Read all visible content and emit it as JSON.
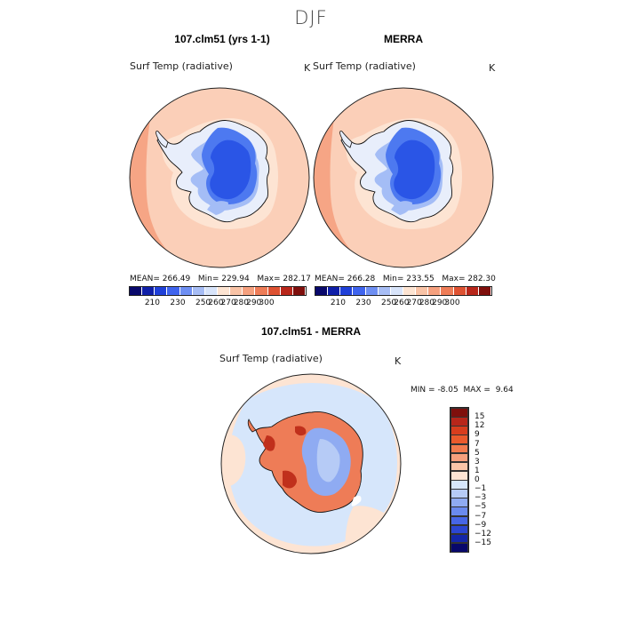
{
  "season": "DJF",
  "panels": [
    {
      "title": "107.clm51 (yrs 1-1)",
      "variable": "Surf Temp (radiative)",
      "units": "K",
      "stats": {
        "mean": "266.49",
        "min": "229.94",
        "max": "282.17"
      }
    },
    {
      "title": "MERRA",
      "variable": "Surf Temp (radiative)",
      "units": "K",
      "stats": {
        "mean": "266.28",
        "min": "233.55",
        "max": "282.30"
      }
    },
    {
      "title": "107.clm51 - MERRA",
      "variable": "Surf Temp (radiative)",
      "units": "K",
      "stats": {
        "min": "-8.05",
        "max": "9.64"
      }
    }
  ],
  "labels": {
    "mean": "MEAN=",
    "min": "Min=",
    "max": "Max=",
    "diff_min": "MIN =",
    "diff_max": "MAX ="
  },
  "abs_colorbar": {
    "ticks": [
      "210",
      "230",
      "250",
      "260",
      "270",
      "280",
      "290",
      "300"
    ],
    "colors": [
      "#08086b",
      "#0f1fa8",
      "#1f40d8",
      "#3f64ee",
      "#6e8ff3",
      "#a7bdf5",
      "#d8e4fa",
      "#fde4d2",
      "#f9c3a6",
      "#f5a07e",
      "#ee7c57",
      "#de5232",
      "#b8261a",
      "#7f0f0c"
    ]
  },
  "diff_colorbar": {
    "ticks": [
      "15",
      "12",
      "9",
      "7",
      "5",
      "3",
      "1",
      "0",
      "−1",
      "−3",
      "−5",
      "−7",
      "−9",
      "−12",
      "−15"
    ],
    "colors": [
      "#7f0f0c",
      "#b8261a",
      "#d83d1d",
      "#ea5a2c",
      "#f27b4e",
      "#f6a07d",
      "#f9c5a8",
      "#fde4d3",
      "#d6e6fb",
      "#b6cbf6",
      "#8fabf2",
      "#6a8aee",
      "#4766e6",
      "#2c46d2",
      "#1426a8",
      "#08086b"
    ]
  },
  "map_colors": {
    "ocean_abs": "#fbcfb8",
    "ocean_warm": "#f6a585",
    "ocean_cool": "#fde4d3",
    "ice_dark": "#2a55e6",
    "ice_mid": "#4d79f0",
    "ice_light": "#a4bdf6",
    "coast_pale": "#e8eefb",
    "diff_ocean": "#fde4d3",
    "diff_blue": "#d6e6fb",
    "diff_red": "#ee7c57",
    "diff_darkred": "#c0301c",
    "diff_land_blue": "#8fabf2"
  }
}
